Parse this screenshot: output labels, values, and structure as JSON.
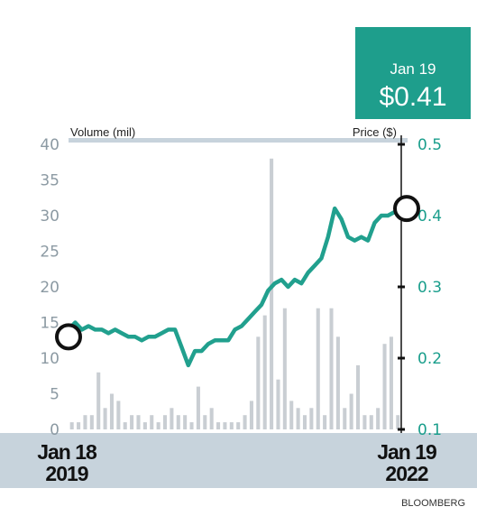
{
  "colors": {
    "price_line": "#21a08e",
    "volume_bars": "#c9ced3",
    "band": "#c7d3dc",
    "callout_bg": "#1e9e8c",
    "axis_right": "#111111"
  },
  "callout": {
    "date": "Jan 19",
    "price": "$0.41"
  },
  "source": "BLOOMBERG",
  "chart_data": {
    "type": "line",
    "left_axis": {
      "label": "Volume (mil)",
      "ticks": [
        "0",
        "5",
        "10",
        "15",
        "20",
        "25",
        "30",
        "35",
        "40"
      ],
      "range": [
        0,
        40
      ]
    },
    "right_axis": {
      "label": "Price ($)",
      "ticks": [
        "0.1",
        "0.2",
        "0.3",
        "0.4",
        "0.5"
      ],
      "range": [
        0.1,
        0.5
      ]
    },
    "x_start": {
      "month_day": "Jan 18",
      "year": "2019"
    },
    "x_end": {
      "month_day": "Jan 19",
      "year": "2022"
    },
    "grid": false,
    "series": [
      {
        "type": "line",
        "axis": "right",
        "x": [
          0,
          0.02,
          0.04,
          0.06,
          0.08,
          0.1,
          0.12,
          0.14,
          0.16,
          0.18,
          0.2,
          0.22,
          0.24,
          0.26,
          0.28,
          0.3,
          0.32,
          0.34,
          0.36,
          0.38,
          0.4,
          0.42,
          0.44,
          0.46,
          0.48,
          0.5,
          0.52,
          0.54,
          0.56,
          0.58,
          0.6,
          0.62,
          0.64,
          0.66,
          0.68,
          0.7,
          0.72,
          0.74,
          0.76,
          0.78,
          0.8,
          0.82,
          0.84,
          0.86,
          0.88,
          0.9,
          0.92,
          0.94,
          0.96,
          0.98,
          1.0
        ],
        "values": [
          0.24,
          0.25,
          0.24,
          0.245,
          0.24,
          0.24,
          0.235,
          0.24,
          0.235,
          0.23,
          0.23,
          0.225,
          0.23,
          0.23,
          0.235,
          0.24,
          0.24,
          0.215,
          0.19,
          0.21,
          0.21,
          0.22,
          0.225,
          0.225,
          0.225,
          0.24,
          0.245,
          0.255,
          0.265,
          0.275,
          0.295,
          0.305,
          0.31,
          0.3,
          0.31,
          0.305,
          0.32,
          0.33,
          0.34,
          0.37,
          0.41,
          0.395,
          0.37,
          0.365,
          0.37,
          0.365,
          0.39,
          0.4,
          0.4,
          0.405,
          0.41
        ]
      },
      {
        "type": "bar",
        "axis": "left",
        "x": [
          0.01,
          0.03,
          0.05,
          0.07,
          0.09,
          0.11,
          0.13,
          0.15,
          0.17,
          0.19,
          0.21,
          0.23,
          0.25,
          0.27,
          0.29,
          0.31,
          0.33,
          0.35,
          0.37,
          0.39,
          0.41,
          0.43,
          0.45,
          0.47,
          0.49,
          0.51,
          0.53,
          0.55,
          0.57,
          0.59,
          0.61,
          0.63,
          0.65,
          0.67,
          0.69,
          0.71,
          0.73,
          0.75,
          0.77,
          0.79,
          0.81,
          0.83,
          0.85,
          0.87,
          0.89,
          0.91,
          0.93,
          0.95,
          0.97,
          0.99
        ],
        "values": [
          1,
          1,
          2,
          2,
          8,
          3,
          5,
          4,
          1,
          2,
          2,
          1,
          2,
          1,
          2,
          3,
          2,
          2,
          1,
          6,
          2,
          3,
          1,
          1,
          1,
          1,
          2,
          4,
          13,
          16,
          38,
          7,
          17,
          4,
          3,
          2,
          3,
          17,
          2,
          17,
          13,
          3,
          5,
          9,
          2,
          2,
          3,
          12,
          13,
          2
        ]
      }
    ]
  }
}
